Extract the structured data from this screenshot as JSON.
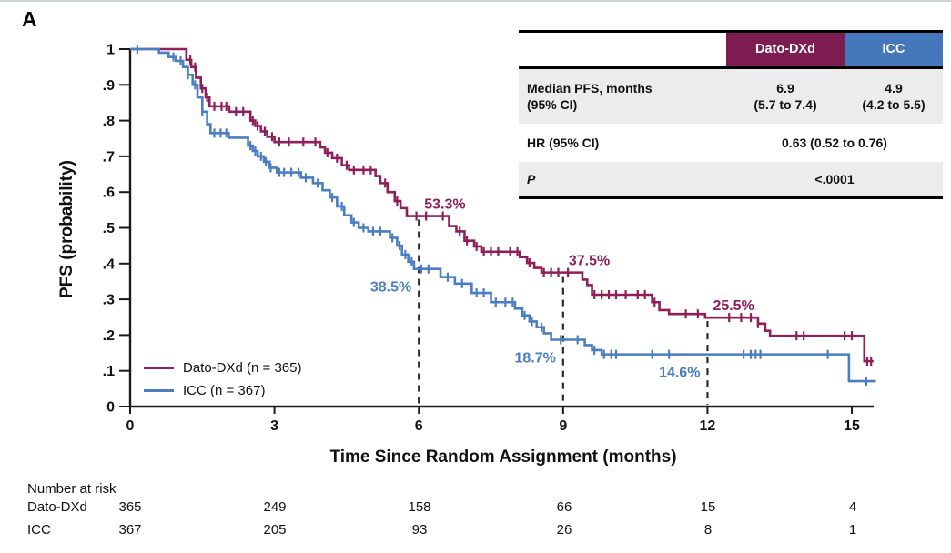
{
  "panel_label": "A",
  "axes": {
    "y_title": "PFS (probability)",
    "x_title": "Time Since Random Assignment (months)"
  },
  "legend": {
    "items": [
      {
        "label": "Dato-DXd (n = 365)",
        "color": "#8e1f58"
      },
      {
        "label": "ICC (n = 367)",
        "color": "#4a7ec1"
      }
    ]
  },
  "results_table": {
    "columns": [
      "Dato-DXd",
      "ICC"
    ],
    "rows": [
      {
        "label": "Median PFS, months\n(95% CI)",
        "dato": "6.9\n(5.7 to 7.4)",
        "icc": "4.9\n(4.2 to 5.5)"
      },
      {
        "label": "HR (95% CI)",
        "value": "0.63 (0.52 to 0.76)"
      },
      {
        "label": "P",
        "value": "<.0001"
      }
    ]
  },
  "risk_table": {
    "title": "Number at risk",
    "time_points": [
      0,
      3,
      6,
      9,
      12,
      15
    ],
    "rows": [
      {
        "label": "Dato-DXd",
        "values": [
          "365",
          "249",
          "158",
          "66",
          "15",
          "4"
        ]
      },
      {
        "label": "ICC",
        "values": [
          "367",
          "205",
          "93",
          "26",
          "8",
          "1"
        ]
      }
    ]
  },
  "chart_data": {
    "type": "line",
    "subtype": "kaplan-meier-step",
    "title": "",
    "xlabel": "Time Since Random Assignment (months)",
    "ylabel": "PFS (probability)",
    "xlim": [
      0,
      15.7
    ],
    "ylim": [
      0,
      1
    ],
    "x_ticks": [
      0,
      3,
      6,
      9,
      12,
      15
    ],
    "y_ticks": [
      0,
      0.1,
      0.2,
      0.3,
      0.4,
      0.5,
      0.6,
      0.7,
      0.8,
      0.9,
      1
    ],
    "y_tick_labels": [
      "0",
      ".1",
      ".2",
      ".3",
      ".4",
      ".5",
      ".6",
      ".7",
      ".8",
      ".9",
      "1"
    ],
    "grid": false,
    "legend_position": "lower-left",
    "dashed_lines_months": [
      6,
      9,
      12
    ],
    "series": [
      {
        "name": "Dato-DXd (n = 365)",
        "color": "#8e1f58",
        "landmark_pfs": {
          "6": "53.3%",
          "9": "37.5%",
          "12": "25.5%"
        },
        "steps": [
          [
            0,
            1.0
          ],
          [
            1.17,
            0.97
          ],
          [
            1.27,
            0.95
          ],
          [
            1.37,
            0.92
          ],
          [
            1.47,
            0.89
          ],
          [
            1.57,
            0.865
          ],
          [
            1.65,
            0.84
          ],
          [
            2.06,
            0.825
          ],
          [
            2.5,
            0.8
          ],
          [
            2.6,
            0.785
          ],
          [
            2.72,
            0.77
          ],
          [
            2.85,
            0.755
          ],
          [
            3.0,
            0.74
          ],
          [
            3.95,
            0.725
          ],
          [
            4.05,
            0.71
          ],
          [
            4.2,
            0.695
          ],
          [
            4.4,
            0.675
          ],
          [
            4.55,
            0.662
          ],
          [
            5.1,
            0.645
          ],
          [
            5.2,
            0.625
          ],
          [
            5.35,
            0.6
          ],
          [
            5.5,
            0.575
          ],
          [
            5.62,
            0.555
          ],
          [
            5.75,
            0.533
          ],
          [
            6.63,
            0.505
          ],
          [
            6.78,
            0.49
          ],
          [
            6.95,
            0.464
          ],
          [
            7.15,
            0.448
          ],
          [
            7.3,
            0.433
          ],
          [
            8.1,
            0.418
          ],
          [
            8.25,
            0.402
          ],
          [
            8.4,
            0.388
          ],
          [
            8.55,
            0.375
          ],
          [
            9.4,
            0.355
          ],
          [
            9.5,
            0.34
          ],
          [
            9.6,
            0.313
          ],
          [
            10.85,
            0.292
          ],
          [
            11.0,
            0.27
          ],
          [
            11.2,
            0.259
          ],
          [
            11.95,
            0.249
          ],
          [
            13.05,
            0.232
          ],
          [
            13.2,
            0.212
          ],
          [
            13.3,
            0.198
          ],
          [
            15.26,
            0.127
          ]
        ],
        "end": 15.45,
        "censors": [
          1.25,
          1.35,
          1.5,
          1.6,
          1.75,
          1.9,
          2.0,
          2.2,
          2.35,
          2.55,
          2.65,
          2.8,
          2.95,
          3.1,
          3.3,
          3.6,
          3.85,
          4.1,
          4.3,
          4.5,
          4.65,
          4.85,
          5.0,
          5.3,
          5.55,
          5.95,
          6.15,
          6.5,
          6.85,
          7.0,
          7.2,
          7.35,
          7.5,
          7.65,
          7.9,
          8.05,
          8.3,
          8.6,
          8.75,
          8.9,
          9.1,
          9.65,
          9.8,
          9.95,
          10.1,
          10.3,
          10.55,
          10.7,
          10.9,
          11.55,
          11.8,
          12.45,
          12.7,
          12.9,
          13.05,
          13.85,
          14.0,
          14.85,
          15.0,
          15.32,
          15.4
        ]
      },
      {
        "name": "ICC (n = 367)",
        "color": "#4a7ec1",
        "landmark_pfs": {
          "6": "38.5%",
          "9": "18.7%",
          "12": "14.6%"
        },
        "steps": [
          [
            0,
            1.0
          ],
          [
            0.6,
            0.99
          ],
          [
            0.8,
            0.978
          ],
          [
            0.95,
            0.967
          ],
          [
            1.1,
            0.95
          ],
          [
            1.2,
            0.928
          ],
          [
            1.3,
            0.9
          ],
          [
            1.4,
            0.865
          ],
          [
            1.5,
            0.825
          ],
          [
            1.6,
            0.79
          ],
          [
            1.67,
            0.765
          ],
          [
            2.05,
            0.752
          ],
          [
            2.45,
            0.73
          ],
          [
            2.55,
            0.715
          ],
          [
            2.65,
            0.7
          ],
          [
            2.78,
            0.685
          ],
          [
            2.9,
            0.668
          ],
          [
            3.05,
            0.655
          ],
          [
            3.55,
            0.64
          ],
          [
            3.8,
            0.625
          ],
          [
            4.0,
            0.605
          ],
          [
            4.15,
            0.585
          ],
          [
            4.3,
            0.56
          ],
          [
            4.45,
            0.535
          ],
          [
            4.6,
            0.515
          ],
          [
            4.75,
            0.5
          ],
          [
            4.95,
            0.49
          ],
          [
            5.4,
            0.472
          ],
          [
            5.55,
            0.45
          ],
          [
            5.65,
            0.425
          ],
          [
            5.78,
            0.405
          ],
          [
            5.9,
            0.385
          ],
          [
            6.45,
            0.362
          ],
          [
            6.75,
            0.344
          ],
          [
            7.1,
            0.318
          ],
          [
            7.5,
            0.292
          ],
          [
            8.0,
            0.274
          ],
          [
            8.15,
            0.255
          ],
          [
            8.3,
            0.238
          ],
          [
            8.45,
            0.222
          ],
          [
            8.6,
            0.205
          ],
          [
            8.75,
            0.187
          ],
          [
            9.45,
            0.172
          ],
          [
            9.6,
            0.158
          ],
          [
            9.8,
            0.146
          ],
          [
            14.94,
            0.071
          ]
        ],
        "end": 15.5,
        "censors": [
          0.15,
          0.9,
          1.05,
          1.2,
          1.35,
          1.5,
          1.75,
          1.88,
          2.0,
          2.5,
          2.6,
          2.72,
          2.82,
          2.92,
          3.1,
          3.2,
          3.35,
          3.5,
          3.65,
          3.9,
          4.2,
          4.4,
          4.65,
          4.85,
          5.05,
          5.2,
          5.45,
          5.6,
          5.72,
          5.85,
          6.05,
          6.2,
          6.6,
          6.9,
          7.2,
          7.35,
          7.6,
          7.8,
          7.95,
          8.2,
          8.35,
          8.55,
          8.95,
          9.3,
          9.65,
          9.85,
          10.0,
          10.1,
          10.85,
          11.2,
          12.75,
          12.9,
          13.0,
          13.1,
          14.5,
          15.3
        ]
      }
    ],
    "annotations": [
      {
        "text": "53.3%",
        "month": 6,
        "series": 0
      },
      {
        "text": "37.5%",
        "month": 9,
        "series": 0
      },
      {
        "text": "25.5%",
        "month": 12,
        "series": 0
      },
      {
        "text": "38.5%",
        "month": 6,
        "series": 1
      },
      {
        "text": "18.7%",
        "month": 9,
        "series": 1
      },
      {
        "text": "14.6%",
        "month": 12,
        "series": 1
      }
    ]
  }
}
